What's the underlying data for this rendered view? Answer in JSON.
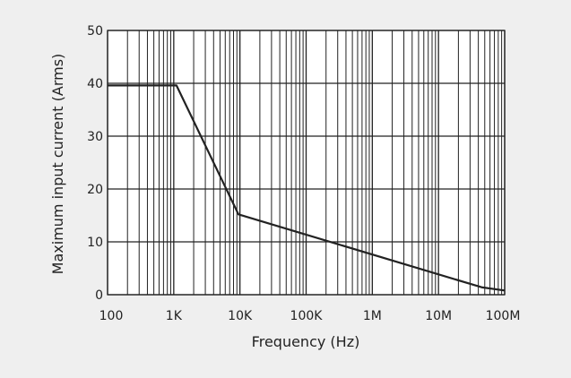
{
  "colors": {
    "background": "#efefef",
    "plot_background": "#ffffff",
    "grid": "#222222",
    "line": "#222222",
    "text": "#222222"
  },
  "chart_data": {
    "type": "line",
    "title": "",
    "xlabel": "Frequency (Hz)",
    "ylabel": "Maximum input current (Arms)",
    "x_scale": "log",
    "xlim": [
      100,
      100000000
    ],
    "ylim": [
      0,
      50
    ],
    "grid": true,
    "x_ticks": [
      {
        "value": 100,
        "label": "100"
      },
      {
        "value": 1000,
        "label": "1K"
      },
      {
        "value": 10000,
        "label": "10K"
      },
      {
        "value": 100000,
        "label": "100K"
      },
      {
        "value": 1000000,
        "label": "1M"
      },
      {
        "value": 10000000,
        "label": "10M"
      },
      {
        "value": 100000000,
        "label": "100M"
      }
    ],
    "y_ticks": [
      {
        "value": 0,
        "label": "0"
      },
      {
        "value": 10,
        "label": "10"
      },
      {
        "value": 20,
        "label": "20"
      },
      {
        "value": 30,
        "label": "30"
      },
      {
        "value": 40,
        "label": "40"
      },
      {
        "value": 50,
        "label": "50"
      }
    ],
    "series": [
      {
        "points": [
          {
            "x": 100,
            "y": 39.6
          },
          {
            "x": 1100,
            "y": 39.6
          },
          {
            "x": 9500,
            "y": 15.2
          },
          {
            "x": 45000000,
            "y": 1.4
          },
          {
            "x": 100000000,
            "y": 0.8
          }
        ]
      }
    ]
  }
}
